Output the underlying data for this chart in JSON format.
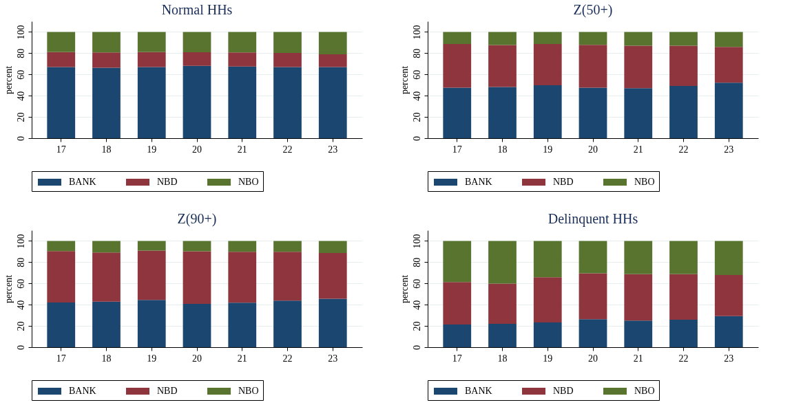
{
  "chart_data": [
    {
      "type": "bar",
      "stacked": true,
      "title": "Normal HHs",
      "ylabel": "percent",
      "categories": [
        "17",
        "18",
        "19",
        "20",
        "21",
        "22",
        "23"
      ],
      "ylim": [
        0,
        110
      ],
      "yticks": [
        0,
        20,
        40,
        60,
        80,
        100
      ],
      "grid": "y",
      "legend": "bottom",
      "series": [
        {
          "name": "BANK",
          "color": "#1a4670",
          "values": [
            67.0,
            66.4,
            67.0,
            68.1,
            67.5,
            67.0,
            67.0
          ]
        },
        {
          "name": "NBD",
          "color": "#8e353d",
          "values": [
            14.1,
            14.3,
            14.1,
            12.8,
            13.2,
            13.3,
            12.0
          ]
        },
        {
          "name": "NBO",
          "color": "#58742f",
          "values": [
            18.9,
            19.3,
            18.9,
            19.1,
            19.3,
            19.7,
            21.0
          ]
        }
      ]
    },
    {
      "type": "bar",
      "stacked": true,
      "title": "Z(50+)",
      "ylabel": "percent",
      "categories": [
        "17",
        "18",
        "19",
        "20",
        "21",
        "22",
        "23"
      ],
      "ylim": [
        0,
        110
      ],
      "yticks": [
        0,
        20,
        40,
        60,
        80,
        100
      ],
      "grid": "y",
      "legend": "bottom",
      "series": [
        {
          "name": "BANK",
          "color": "#1a4670",
          "values": [
            47.5,
            48.2,
            49.9,
            47.5,
            47.1,
            49.2,
            52.3
          ]
        },
        {
          "name": "NBD",
          "color": "#8e353d",
          "values": [
            41.2,
            39.4,
            38.8,
            40.4,
            39.9,
            37.8,
            33.6
          ]
        },
        {
          "name": "NBO",
          "color": "#58742f",
          "values": [
            11.3,
            12.4,
            11.3,
            12.1,
            13.0,
            13.0,
            14.1
          ]
        }
      ]
    },
    {
      "type": "bar",
      "stacked": true,
      "title": "Z(90+)",
      "ylabel": "percent",
      "categories": [
        "17",
        "18",
        "19",
        "20",
        "21",
        "22",
        "23"
      ],
      "ylim": [
        0,
        110
      ],
      "yticks": [
        0,
        20,
        40,
        60,
        80,
        100
      ],
      "grid": "y",
      "legend": "bottom",
      "series": [
        {
          "name": "BANK",
          "color": "#1a4670",
          "values": [
            42.1,
            42.8,
            44.5,
            40.8,
            41.9,
            43.8,
            45.6
          ]
        },
        {
          "name": "NBD",
          "color": "#8e353d",
          "values": [
            48.4,
            46.4,
            46.4,
            49.5,
            47.9,
            46.0,
            43.0
          ]
        },
        {
          "name": "NBO",
          "color": "#58742f",
          "values": [
            9.5,
            10.8,
            9.1,
            9.7,
            10.2,
            10.2,
            11.4
          ]
        }
      ]
    },
    {
      "type": "bar",
      "stacked": true,
      "title": "Delinquent HHs",
      "ylabel": "percent",
      "categories": [
        "17",
        "18",
        "19",
        "20",
        "21",
        "22",
        "23"
      ],
      "ylim": [
        0,
        110
      ],
      "yticks": [
        0,
        20,
        40,
        60,
        80,
        100
      ],
      "grid": "y",
      "legend": "bottom",
      "series": [
        {
          "name": "BANK",
          "color": "#1a4670",
          "values": [
            21.4,
            22.0,
            23.3,
            26.3,
            25.1,
            25.9,
            29.2
          ]
        },
        {
          "name": "NBD",
          "color": "#8e353d",
          "values": [
            39.9,
            37.8,
            42.6,
            43.2,
            43.6,
            42.8,
            38.8
          ]
        },
        {
          "name": "NBO",
          "color": "#58742f",
          "values": [
            38.7,
            40.2,
            34.1,
            30.5,
            31.3,
            31.3,
            32.0
          ]
        }
      ]
    }
  ]
}
